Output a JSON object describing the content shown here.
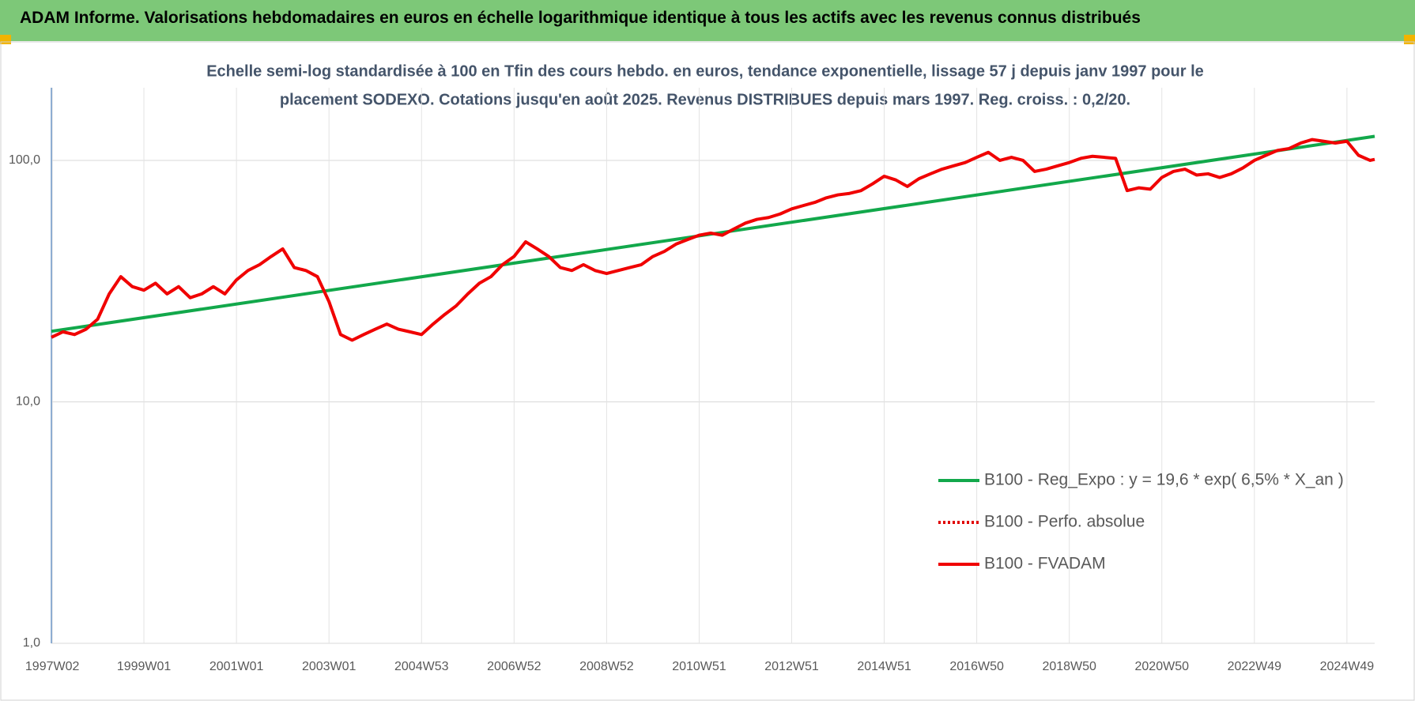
{
  "header": {
    "title": "ADAM Informe. Valorisations hebdomadaires en euros en échelle logarithmique identique à tous les actifs avec les revenus connus distribués"
  },
  "chart_data": {
    "type": "line",
    "subtitle": [
      "Echelle semi-log standardisée à 100 en Tfin des cours hebdo. en euros, tendance exponentielle, lissage 57 j depuis janv 1997 pour le",
      "placement SODEXO. Cotations jusqu'en août 2025. Revenus DISTRIBUES depuis mars 1997. Reg. croiss. : 0,2/20."
    ],
    "log_y": true,
    "grid": true,
    "legend": "bottom-right",
    "xlim": [
      1997.0,
      2025.6
    ],
    "xticks": [
      {
        "value": 1997.02,
        "label": "1997W02"
      },
      {
        "value": 1999.0,
        "label": "1999W01"
      },
      {
        "value": 2001.0,
        "label": "2001W01"
      },
      {
        "value": 2003.0,
        "label": "2003W01"
      },
      {
        "value": 2005.0,
        "label": "2004W53"
      },
      {
        "value": 2007.0,
        "label": "2006W52"
      },
      {
        "value": 2009.0,
        "label": "2008W52"
      },
      {
        "value": 2011.0,
        "label": "2010W51"
      },
      {
        "value": 2013.0,
        "label": "2012W51"
      },
      {
        "value": 2015.0,
        "label": "2014W51"
      },
      {
        "value": 2017.0,
        "label": "2016W50"
      },
      {
        "value": 2019.0,
        "label": "2018W50"
      },
      {
        "value": 2021.0,
        "label": "2020W50"
      },
      {
        "value": 2023.0,
        "label": "2022W49"
      },
      {
        "value": 2025.0,
        "label": "2024W49"
      }
    ],
    "ylim": [
      1,
      200
    ],
    "yticks": [
      {
        "value": 1,
        "label": "1,0"
      },
      {
        "value": 10,
        "label": "10,0"
      },
      {
        "value": 100,
        "label": "100,0"
      }
    ],
    "series": [
      {
        "name": "B100 - Reg_Expo : y = 19,6 * exp( 6,5% *  X_an )",
        "color": "#12a84b",
        "style": "solid",
        "x": [
          1997.0,
          2025.6
        ],
        "values": [
          19.6,
          125.8
        ]
      },
      {
        "name": "B100 - Perfo. absolue",
        "color": "#e00000",
        "style": "dotted",
        "x": [],
        "values": []
      },
      {
        "name": "B100 - FVADAM",
        "color": "#f00000",
        "style": "solid",
        "x": [
          1997.0,
          1997.25,
          1997.5,
          1997.75,
          1998.0,
          1998.25,
          1998.5,
          1998.75,
          1999.0,
          1999.25,
          1999.5,
          1999.75,
          2000.0,
          2000.25,
          2000.5,
          2000.75,
          2001.0,
          2001.25,
          2001.5,
          2001.75,
          2002.0,
          2002.25,
          2002.5,
          2002.75,
          2003.0,
          2003.25,
          2003.5,
          2003.75,
          2004.0,
          2004.25,
          2004.5,
          2004.75,
          2005.0,
          2005.25,
          2005.5,
          2005.75,
          2006.0,
          2006.25,
          2006.5,
          2006.75,
          2007.0,
          2007.25,
          2007.5,
          2007.75,
          2008.0,
          2008.25,
          2008.5,
          2008.75,
          2009.0,
          2009.25,
          2009.5,
          2009.75,
          2010.0,
          2010.25,
          2010.5,
          2010.75,
          2011.0,
          2011.25,
          2011.5,
          2011.75,
          2012.0,
          2012.25,
          2012.5,
          2012.75,
          2013.0,
          2013.25,
          2013.5,
          2013.75,
          2014.0,
          2014.25,
          2014.5,
          2014.75,
          2015.0,
          2015.25,
          2015.5,
          2015.75,
          2016.0,
          2016.25,
          2016.5,
          2016.75,
          2017.0,
          2017.25,
          2017.5,
          2017.75,
          2018.0,
          2018.25,
          2018.5,
          2018.75,
          2019.0,
          2019.25,
          2019.5,
          2019.75,
          2020.0,
          2020.25,
          2020.5,
          2020.75,
          2021.0,
          2021.25,
          2021.5,
          2021.75,
          2022.0,
          2022.25,
          2022.5,
          2022.75,
          2023.0,
          2023.25,
          2023.5,
          2023.75,
          2024.0,
          2024.25,
          2024.5,
          2024.75,
          2025.0,
          2025.25,
          2025.5,
          2025.6
        ],
        "values": [
          18.5,
          19.5,
          19,
          20,
          22,
          28,
          33,
          30,
          29,
          31,
          28,
          30,
          27,
          28,
          30,
          28,
          32,
          35,
          37,
          40,
          43,
          36,
          35,
          33,
          26,
          19,
          18,
          19,
          20,
          21,
          20,
          19.5,
          19,
          21,
          23,
          25,
          28,
          31,
          33,
          37,
          40,
          46,
          43,
          40,
          36,
          35,
          37,
          35,
          34,
          35,
          36,
          37,
          40,
          42,
          45,
          47,
          49,
          50,
          49,
          52,
          55,
          57,
          58,
          60,
          63,
          65,
          67,
          70,
          72,
          73,
          75,
          80,
          86,
          83,
          78,
          84,
          88,
          92,
          95,
          98,
          103,
          108,
          100,
          103,
          100,
          90,
          92,
          95,
          98,
          102,
          104,
          103,
          102,
          75,
          77,
          76,
          85,
          90,
          92,
          87,
          88,
          85,
          88,
          93,
          100,
          105,
          110,
          112,
          118,
          122,
          120,
          118,
          120,
          105,
          100,
          101
        ]
      }
    ]
  }
}
